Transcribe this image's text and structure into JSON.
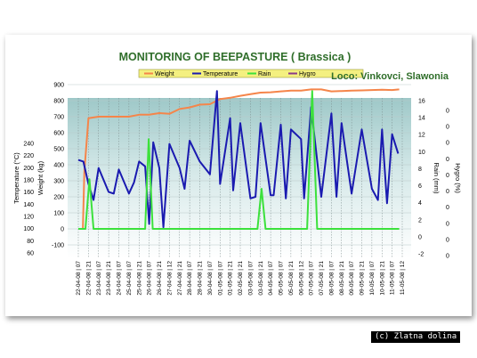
{
  "chart_data": {
    "type": "line",
    "title": "MONITORING OF BEEPASTURE ( Brassica )",
    "subtitle": "Loco: Vinkovci, Slawonia",
    "credit": "(c) Zlatna dolina",
    "legend_position": "top",
    "grid": true,
    "left_axes": [
      {
        "label": "Temperature (°C)",
        "ticks": [
          "240",
          "220",
          "200",
          "180",
          "160",
          "140",
          "120",
          "100",
          "80",
          "60"
        ]
      },
      {
        "label": "Weight (kg)",
        "ticks": [
          "900",
          "800",
          "700",
          "600",
          "500",
          "400",
          "300",
          "200",
          "100",
          "0",
          "-100"
        ]
      }
    ],
    "right_axes": [
      {
        "label": "Rain (mm)",
        "ticks": [
          "16",
          "14",
          "12",
          "10",
          "8",
          "6",
          "4",
          "2",
          "0",
          "-2"
        ]
      },
      {
        "label": "Hygro (%)",
        "ticks": [
          "0",
          "0",
          "0",
          "0",
          "0",
          "0",
          "0",
          "0",
          "0",
          "0"
        ]
      }
    ],
    "x_ticks": [
      "22-04-08 | 07",
      "22-04-08 | 21",
      "23-04-08 | 07",
      "23-04-08 | 21",
      "24-04-08 | 07",
      "25-04-08 | 07",
      "25-04-08 | 21",
      "26-04-08 | 07",
      "26-04-08 | 21",
      "27-04-08 | 12",
      "27-04-08 | 21",
      "28-04-08 | 07",
      "28-04-08 | 21",
      "30-04-08 | 07",
      "01-05-08 | 07",
      "01-05-08 | 21",
      "02-05-08 | 21",
      "03-05-08 | 07",
      "03-05-08 | 21",
      "04-05-08 | 07",
      "05-05-08 | 07",
      "05-05-08 | 21",
      "06-05-08 | 12",
      "07-05-08 | 07",
      "07-05-08 | 21",
      "08-05-08 | 07",
      "08-05-08 | 21",
      "09-05-08 | 07",
      "09-05-08 | 21",
      "10-05-08 | 07",
      "10-05-08 | 21",
      "11-05-08 | 07",
      "11-05-08 | 12"
    ],
    "x_range": [
      0,
      32
    ],
    "weight_range": [
      -100,
      900
    ],
    "series": [
      {
        "name": "Weight",
        "axis": "weight",
        "color": "#f5854a",
        "points": [
          [
            0,
            0
          ],
          [
            0.45,
            0
          ],
          [
            0.6,
            360
          ],
          [
            1.0,
            690
          ],
          [
            2,
            700
          ],
          [
            3,
            700
          ],
          [
            4,
            700
          ],
          [
            5,
            700
          ],
          [
            6,
            712
          ],
          [
            7,
            712
          ],
          [
            8,
            722
          ],
          [
            9,
            718
          ],
          [
            10,
            748
          ],
          [
            11,
            758
          ],
          [
            12,
            775
          ],
          [
            13,
            778
          ],
          [
            13.7,
            800
          ],
          [
            14,
            810
          ],
          [
            15,
            818
          ],
          [
            16,
            830
          ],
          [
            17,
            840
          ],
          [
            18,
            850
          ],
          [
            19,
            852
          ],
          [
            20,
            858
          ],
          [
            21,
            862
          ],
          [
            22,
            862
          ],
          [
            23,
            870
          ],
          [
            24,
            870
          ],
          [
            25,
            858
          ],
          [
            26,
            860
          ],
          [
            27,
            862
          ],
          [
            28,
            864
          ],
          [
            29,
            866
          ],
          [
            30,
            868
          ],
          [
            31,
            866
          ],
          [
            31.7,
            870
          ]
        ]
      },
      {
        "name": "Temperature",
        "axis": "weight",
        "color": "#1a1ab0",
        "points": [
          [
            0,
            430
          ],
          [
            0.5,
            420
          ],
          [
            1,
            280
          ],
          [
            1.5,
            180
          ],
          [
            2,
            380
          ],
          [
            3,
            230
          ],
          [
            3.5,
            220
          ],
          [
            4,
            370
          ],
          [
            5,
            220
          ],
          [
            5.5,
            290
          ],
          [
            6,
            420
          ],
          [
            6.6,
            390
          ],
          [
            7,
            30
          ],
          [
            7.4,
            540
          ],
          [
            8,
            380
          ],
          [
            8.4,
            10
          ],
          [
            9,
            530
          ],
          [
            10,
            380
          ],
          [
            10.5,
            250
          ],
          [
            11,
            550
          ],
          [
            12,
            420
          ],
          [
            13,
            340
          ],
          [
            13.7,
            860
          ],
          [
            14,
            280
          ],
          [
            15,
            690
          ],
          [
            15.3,
            240
          ],
          [
            16,
            660
          ],
          [
            17,
            190
          ],
          [
            17.5,
            200
          ],
          [
            18,
            660
          ],
          [
            19,
            210
          ],
          [
            19.3,
            210
          ],
          [
            20,
            650
          ],
          [
            20.5,
            190
          ],
          [
            21,
            620
          ],
          [
            22,
            560
          ],
          [
            22.3,
            190
          ],
          [
            23,
            760
          ],
          [
            24,
            200
          ],
          [
            25,
            720
          ],
          [
            25.5,
            200
          ],
          [
            26,
            660
          ],
          [
            27,
            220
          ],
          [
            28,
            620
          ],
          [
            29,
            250
          ],
          [
            29.6,
            180
          ],
          [
            30,
            620
          ],
          [
            30.5,
            160
          ],
          [
            31,
            590
          ],
          [
            31.6,
            470
          ]
        ]
      },
      {
        "name": "Rain",
        "axis": "weight",
        "color": "#3ce13c",
        "points": [
          [
            0,
            0
          ],
          [
            0.7,
            0
          ],
          [
            1.1,
            310
          ],
          [
            1.5,
            0
          ],
          [
            2,
            0
          ],
          [
            3,
            0
          ],
          [
            4,
            0
          ],
          [
            5,
            0
          ],
          [
            6,
            0
          ],
          [
            6.6,
            0
          ],
          [
            6.95,
            560
          ],
          [
            7.35,
            0
          ],
          [
            8,
            0
          ],
          [
            9,
            0
          ],
          [
            10,
            0
          ],
          [
            11,
            0
          ],
          [
            12,
            0
          ],
          [
            13,
            0
          ],
          [
            14,
            0
          ],
          [
            15,
            0
          ],
          [
            16,
            0
          ],
          [
            17,
            0
          ],
          [
            17.7,
            0
          ],
          [
            18.1,
            250
          ],
          [
            18.5,
            0
          ],
          [
            19,
            0
          ],
          [
            20,
            0
          ],
          [
            21,
            0
          ],
          [
            22,
            0
          ],
          [
            22.6,
            0
          ],
          [
            23.1,
            860
          ],
          [
            23.6,
            0
          ],
          [
            24,
            0
          ],
          [
            25,
            0
          ],
          [
            26,
            0
          ],
          [
            27,
            0
          ],
          [
            28,
            0
          ],
          [
            29,
            0
          ],
          [
            30,
            0
          ],
          [
            31,
            0
          ],
          [
            31.7,
            0
          ]
        ]
      },
      {
        "name": "Hygro",
        "axis": "hygro",
        "color": "#8a3a8a",
        "points": []
      }
    ]
  }
}
